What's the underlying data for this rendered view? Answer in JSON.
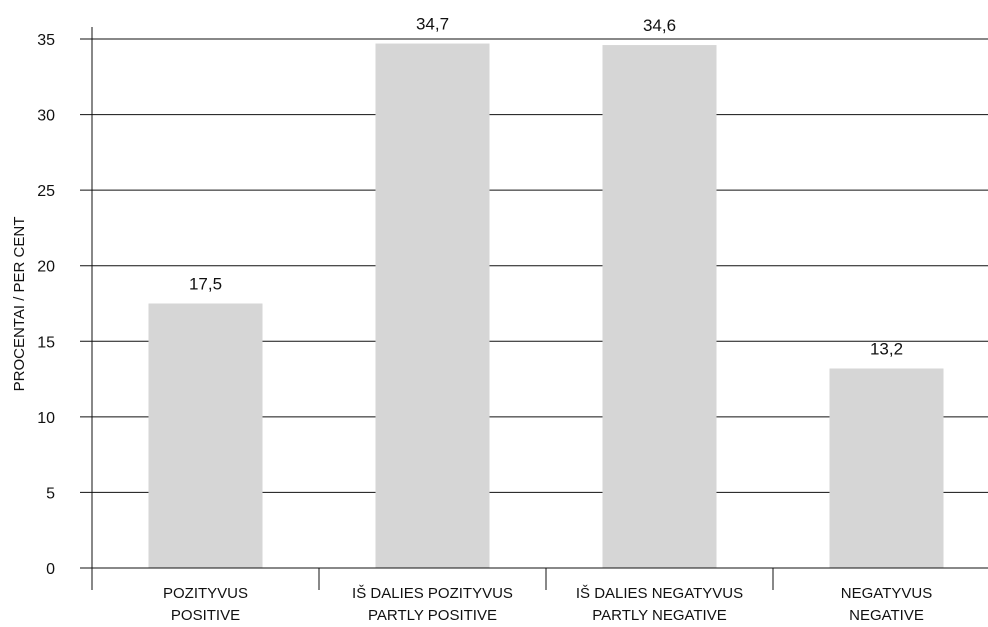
{
  "chart_data": {
    "type": "bar",
    "categories": [
      [
        "POZITYVUS",
        "POSITIVE"
      ],
      [
        "IŠ DALIES POZITYVUS",
        "PARTLY POSITIVE"
      ],
      [
        "IŠ DALIES NEGATYVUS",
        "PARTLY NEGATIVE"
      ],
      [
        "NEGATYVUS",
        "NEGATIVE"
      ]
    ],
    "values": [
      17.5,
      34.7,
      34.6,
      13.2
    ],
    "data_labels": [
      "17,5",
      "34,7",
      "34,6",
      "13,2"
    ],
    "ylabel": "PROCENTAI / PER CENT",
    "xlabel": "",
    "ylim": [
      0,
      35
    ],
    "yticks": [
      0,
      5,
      10,
      15,
      20,
      25,
      30,
      35
    ],
    "grid": true,
    "legend": "none",
    "colors": {
      "bar": "#d6d6d6",
      "grid": "#111111",
      "text": "#111111"
    }
  }
}
